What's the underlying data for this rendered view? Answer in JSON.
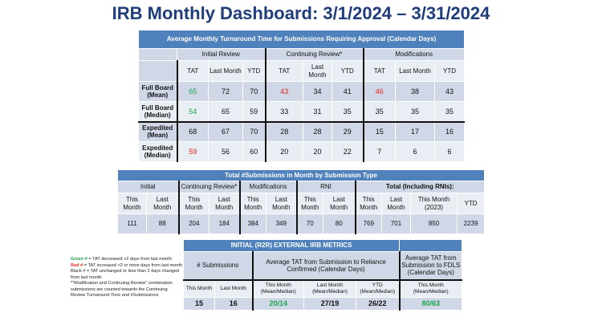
{
  "title": "IRB Monthly Dashboard: 3/1/2024 – 3/31/2024",
  "colors": {
    "header": "#4f81bd",
    "green": "#1aa34a",
    "red": "#e3231b",
    "title": "#1f3d7a"
  },
  "tat_table": {
    "title": "Average Monthly Turnaround Time for Submissions Requiring Approval (Calendar Days)",
    "groups": [
      "Initial Review",
      "Continuing Review*",
      "Modifications"
    ],
    "columns": [
      "TAT",
      "Last Month",
      "YTD",
      "TAT",
      "Last Month",
      "YTD",
      "TAT",
      "Last Month",
      "YTD"
    ],
    "rows": [
      {
        "label": "Full Board (Mean)",
        "values": [
          "65",
          "72",
          "70",
          "43",
          "34",
          "41",
          "46",
          "38",
          "43"
        ],
        "colors": [
          "g",
          "",
          "",
          "r",
          "",
          "",
          "r",
          "",
          ""
        ]
      },
      {
        "label": "Full Board (Median)",
        "values": [
          "54",
          "65",
          "59",
          "33",
          "31",
          "35",
          "35",
          "35",
          "35"
        ],
        "colors": [
          "g",
          "",
          "",
          "",
          "",
          "",
          "",
          "",
          ""
        ]
      },
      {
        "label": "Expedited (Mean)",
        "values": [
          "68",
          "67",
          "70",
          "28",
          "28",
          "29",
          "15",
          "17",
          "16"
        ],
        "colors": [
          "",
          "",
          "",
          "",
          "",
          "",
          "",
          "",
          ""
        ]
      },
      {
        "label": "Expedited (Median)",
        "values": [
          "59",
          "56",
          "60",
          "20",
          "20",
          "22",
          "7",
          "6",
          "6"
        ],
        "colors": [
          "r",
          "",
          "",
          "",
          "",
          "",
          "",
          "",
          ""
        ]
      }
    ]
  },
  "submissions_table": {
    "title": "Total #Submissions in Month by Submission Type",
    "groups": [
      {
        "label": "Initial",
        "span": 2
      },
      {
        "label": "Continuing Review*",
        "span": 2
      },
      {
        "label": "Modifications",
        "span": 2
      },
      {
        "label": "RNI",
        "span": 2
      },
      {
        "label": "Total (Including RNIs):",
        "span": 4
      }
    ],
    "columns": [
      "This Month",
      "Last Month",
      "This Month",
      "Last Month",
      "This Month",
      "Last Month",
      "This Month",
      "Last Month",
      "This Month",
      "Last Month",
      "This Month (2023)",
      "YTD"
    ],
    "values": [
      "111",
      "88",
      "204",
      "184",
      "384",
      "349",
      "70",
      "80",
      "769",
      "701",
      "850",
      "2239"
    ]
  },
  "external_table": {
    "title": "INITIAL (R2R) EXTERNAL IRB METRICS",
    "groups": [
      {
        "label": "# Submissions",
        "span": 2
      },
      {
        "label": "Average TAT from Submission to Reliance Confirmed (Calendar Days)",
        "span": 3
      },
      {
        "label": "Average TAT from Submission to FDLS (Calendar Days)",
        "span": 1
      }
    ],
    "columns": [
      "This Month",
      "Last Month",
      "This Month (Mean/Median)",
      "Last Month (Mean/Median)",
      "YTD (Mean/Median)",
      "This Month (Mean/Median)"
    ],
    "values": [
      "15",
      "16",
      "20/14",
      "27/19",
      "26/22",
      "80/63"
    ],
    "colors": [
      "",
      "",
      "g",
      "",
      "",
      "g"
    ]
  },
  "legend": {
    "green_key": "Green #",
    "green_text": " = TAT decreased >2 days from last month",
    "red_key": "Red #",
    "red_text": " = TAT increased >2 or more days from last month",
    "black_text": "Black # = TAT unchanged or less than 2 days changed from last month",
    "note": "*\"Modification and Continuing Review\" combination submissions are counted towards the Continuing Review Turnaround Time and #Submissions"
  }
}
